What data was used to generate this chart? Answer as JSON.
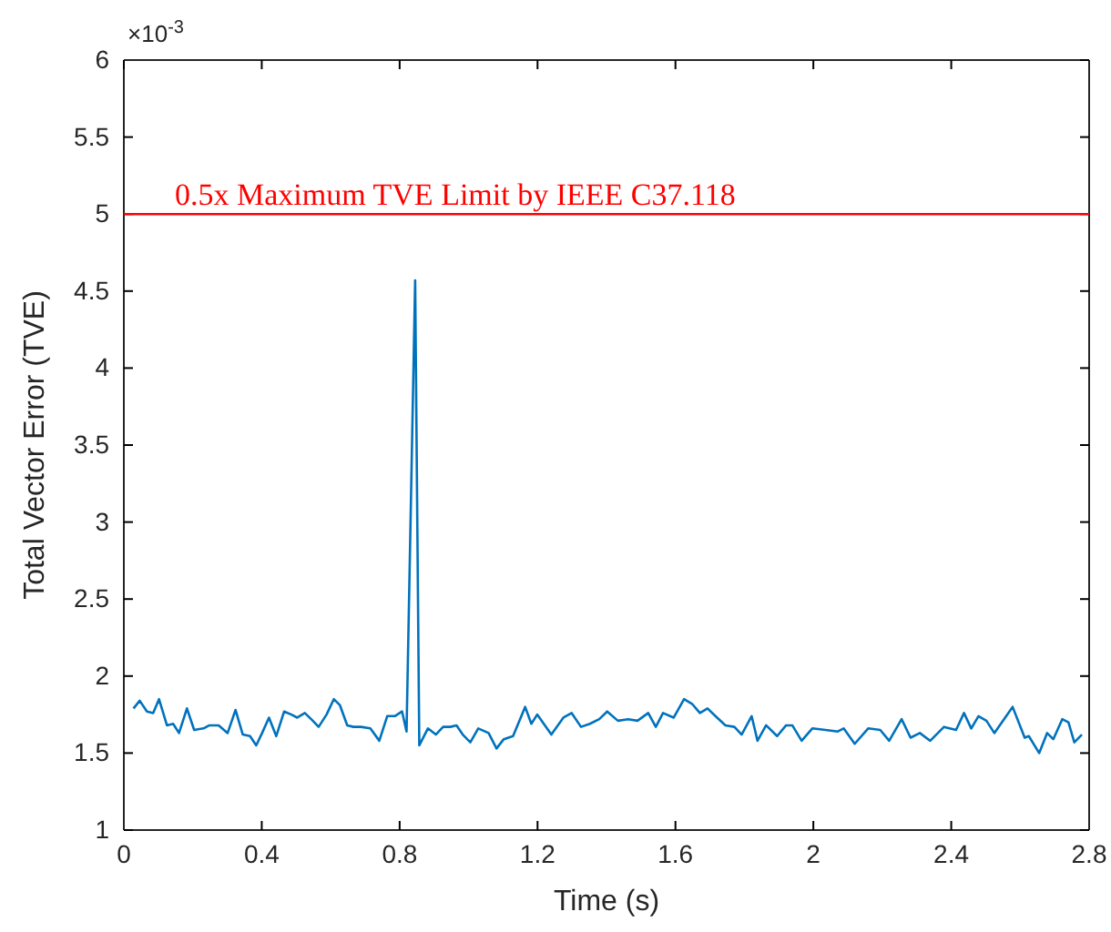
{
  "chart_data": {
    "type": "line",
    "xlabel": "Time (s)",
    "ylabel": "Total Vector Error (TVE)",
    "annotations": [
      "×10$^{-3}$"
    ],
    "xlim": [
      0,
      2.8
    ],
    "xticks": [
      0,
      0.4,
      0.8,
      1.2,
      1.6,
      2,
      2.4,
      2.8
    ],
    "ylim": [
      1,
      6
    ],
    "yticks": [
      1,
      1.5,
      2,
      2.5,
      3,
      3.5,
      4,
      4.5,
      5,
      5.5,
      6
    ],
    "ref_lines": [
      {
        "axis": "y",
        "value": 5,
        "label": "0.5x Maximum TVE Limit by IEEE C37.118",
        "color": "#ff0000"
      }
    ],
    "series": [
      {
        "color": "#0072bd",
        "x": [
          0.028,
          0.046,
          0.067,
          0.085,
          0.102,
          0.125,
          0.143,
          0.16,
          0.183,
          0.204,
          0.231,
          0.248,
          0.275,
          0.301,
          0.324,
          0.345,
          0.366,
          0.384,
          0.401,
          0.421,
          0.442,
          0.465,
          0.486,
          0.503,
          0.525,
          0.548,
          0.565,
          0.588,
          0.609,
          0.627,
          0.648,
          0.666,
          0.688,
          0.715,
          0.741,
          0.764,
          0.786,
          0.807,
          0.82,
          0.845,
          0.857,
          0.882,
          0.905,
          0.926,
          0.947,
          0.965,
          0.983,
          1.005,
          1.028,
          1.058,
          1.081,
          1.102,
          1.129,
          1.164,
          1.182,
          1.199,
          1.24,
          1.275,
          1.299,
          1.326,
          1.352,
          1.379,
          1.402,
          1.433,
          1.463,
          1.49,
          1.521,
          1.543,
          1.564,
          1.595,
          1.625,
          1.648,
          1.671,
          1.693,
          1.716,
          1.745,
          1.771,
          1.792,
          1.821,
          1.838,
          1.863,
          1.895,
          1.921,
          1.939,
          1.966,
          1.997,
          2.035,
          2.071,
          2.088,
          2.12,
          2.159,
          2.194,
          2.22,
          2.256,
          2.282,
          2.309,
          2.339,
          2.379,
          2.414,
          2.437,
          2.458,
          2.479,
          2.502,
          2.525,
          2.578,
          2.613,
          2.625,
          2.655,
          2.678,
          2.696,
          2.722,
          2.74,
          2.757,
          2.779
        ],
        "values": [
          1.79,
          1.84,
          1.77,
          1.76,
          1.85,
          1.68,
          1.69,
          1.63,
          1.79,
          1.65,
          1.66,
          1.68,
          1.68,
          1.63,
          1.78,
          1.62,
          1.61,
          1.55,
          1.63,
          1.73,
          1.61,
          1.77,
          1.75,
          1.73,
          1.76,
          1.71,
          1.67,
          1.75,
          1.85,
          1.81,
          1.68,
          1.67,
          1.67,
          1.66,
          1.58,
          1.74,
          1.74,
          1.77,
          1.64,
          4.57,
          1.55,
          1.66,
          1.62,
          1.67,
          1.67,
          1.68,
          1.62,
          1.57,
          1.66,
          1.63,
          1.53,
          1.59,
          1.61,
          1.8,
          1.69,
          1.75,
          1.62,
          1.73,
          1.76,
          1.67,
          1.69,
          1.72,
          1.77,
          1.71,
          1.72,
          1.71,
          1.76,
          1.67,
          1.76,
          1.73,
          1.85,
          1.82,
          1.76,
          1.79,
          1.74,
          1.68,
          1.67,
          1.62,
          1.74,
          1.58,
          1.68,
          1.61,
          1.68,
          1.68,
          1.58,
          1.66,
          1.65,
          1.64,
          1.66,
          1.56,
          1.66,
          1.65,
          1.58,
          1.72,
          1.6,
          1.63,
          1.58,
          1.67,
          1.65,
          1.76,
          1.66,
          1.74,
          1.71,
          1.63,
          1.8,
          1.6,
          1.61,
          1.5,
          1.63,
          1.59,
          1.72,
          1.7,
          1.57,
          1.62
        ]
      }
    ]
  }
}
